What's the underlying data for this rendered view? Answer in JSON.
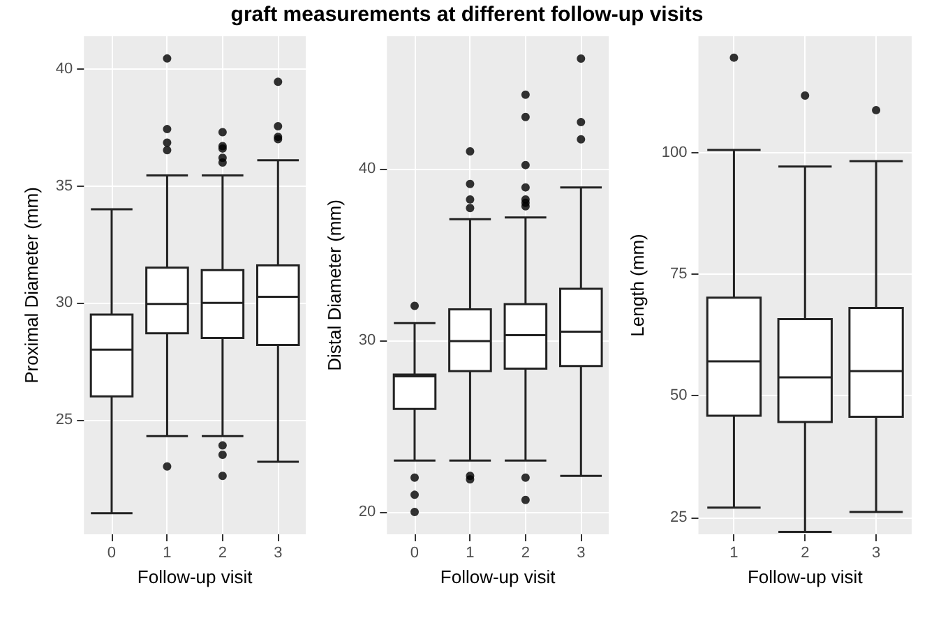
{
  "chart_data": [
    {
      "type": "box",
      "title": "graft measurements at different follow-up visits",
      "xlabel": "Follow-up visit",
      "ylabel": "Proximal Diameter (mm)",
      "categories": [
        "0",
        "1",
        "2",
        "3"
      ],
      "ylim": [
        20.1,
        41.4
      ],
      "yticks": [
        25,
        30,
        35,
        40
      ],
      "grid": true,
      "boxes": [
        {
          "low": 21.0,
          "q1": 26.0,
          "median": 28.0,
          "q3": 29.5,
          "high": 34.0
        },
        {
          "low": 24.3,
          "q1": 28.7,
          "median": 29.95,
          "q3": 31.5,
          "high": 35.45,
          "outliers": [
            40.45,
            37.43,
            36.85,
            36.53,
            23.0
          ]
        },
        {
          "low": 24.3,
          "q1": 28.5,
          "median": 30.0,
          "q3": 31.4,
          "high": 35.45,
          "outliers": [
            37.3,
            36.7,
            36.6,
            36.2,
            36.0,
            23.9,
            23.5,
            22.6
          ]
        },
        {
          "low": 23.2,
          "q1": 28.2,
          "median": 30.26,
          "q3": 31.6,
          "high": 36.1,
          "outliers": [
            39.45,
            37.55,
            37.1,
            37.0
          ]
        }
      ]
    },
    {
      "type": "box",
      "xlabel": "Follow-up visit",
      "ylabel": "Distal Diameter (mm)",
      "categories": [
        "0",
        "1",
        "2",
        "3"
      ],
      "ylim": [
        18.7,
        47.7
      ],
      "yticks": [
        20,
        30,
        40
      ],
      "grid": true,
      "boxes": [
        {
          "low": 23.0,
          "q1": 26.0,
          "median": 27.9,
          "q3": 28.0,
          "high": 31.0,
          "outliers": [
            32.0,
            22.0,
            21.0,
            20.0
          ]
        },
        {
          "low": 23.0,
          "q1": 28.2,
          "median": 29.95,
          "q3": 31.8,
          "high": 37.05,
          "outliers": [
            41.0,
            39.1,
            38.2,
            37.7,
            22.1,
            21.9
          ]
        },
        {
          "low": 23.0,
          "q1": 28.35,
          "median": 30.3,
          "q3": 32.1,
          "high": 37.15,
          "outliers": [
            44.3,
            43.0,
            40.2,
            38.9,
            38.2,
            38.0,
            37.8,
            22.0,
            20.7
          ]
        },
        {
          "low": 22.1,
          "q1": 28.5,
          "median": 30.5,
          "q3": 33.0,
          "high": 38.9,
          "outliers": [
            46.4,
            42.7,
            41.7
          ]
        }
      ]
    },
    {
      "type": "box",
      "xlabel": "Follow-up visit",
      "ylabel": "Length (mm)",
      "categories": [
        "1",
        "2",
        "3"
      ],
      "ylim": [
        21.5,
        124
      ],
      "yticks": [
        25,
        50,
        75,
        100
      ],
      "grid": true,
      "boxes": [
        {
          "low": 27.0,
          "q1": 45.9,
          "median": 57.1,
          "q3": 70.2,
          "high": 100.6,
          "outliers": [
            119.6
          ]
        },
        {
          "low": 22.0,
          "q1": 44.6,
          "median": 53.8,
          "q3": 65.8,
          "high": 97.2,
          "outliers": [
            111.8
          ]
        },
        {
          "low": 26.1,
          "q1": 45.7,
          "median": 55.1,
          "q3": 68.1,
          "high": 98.3,
          "outliers": [
            108.8
          ]
        }
      ]
    }
  ]
}
